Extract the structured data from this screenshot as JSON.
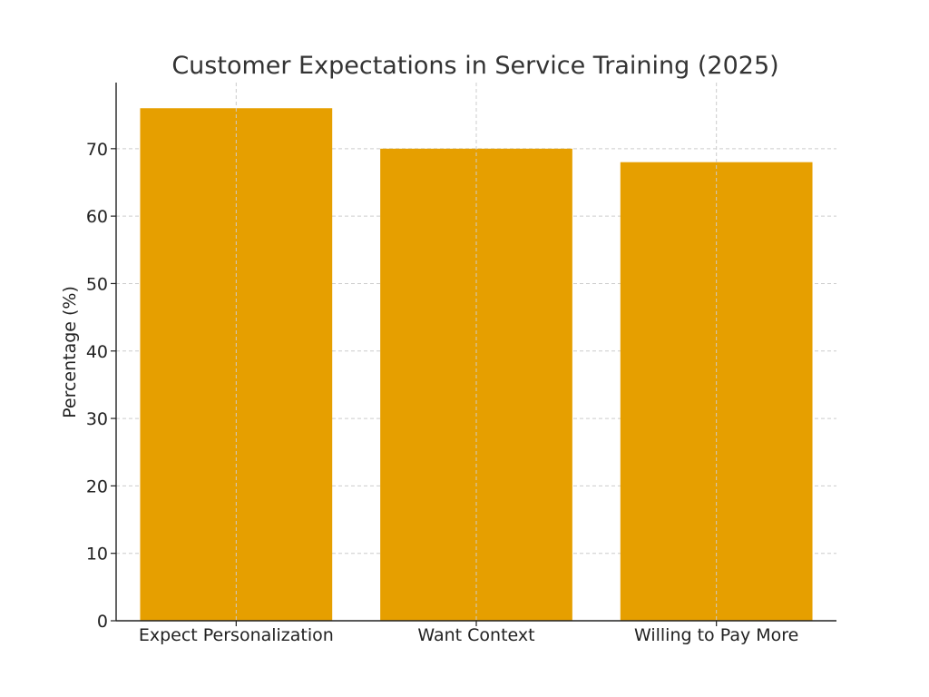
{
  "chart_data": {
    "type": "bar",
    "title": "Customer Expectations in Service Training (2025)",
    "xlabel": "",
    "ylabel": "Percentage (%)",
    "categories": [
      "Expect Personalization",
      "Want Context",
      "Willing to Pay More"
    ],
    "values": [
      76,
      70,
      68
    ],
    "ylim": [
      0,
      79.8
    ],
    "yticks": [
      0,
      10,
      20,
      30,
      40,
      50,
      60,
      70
    ],
    "grid": true,
    "bar_color": "#E69F00",
    "grid_color": "#cccccc"
  }
}
